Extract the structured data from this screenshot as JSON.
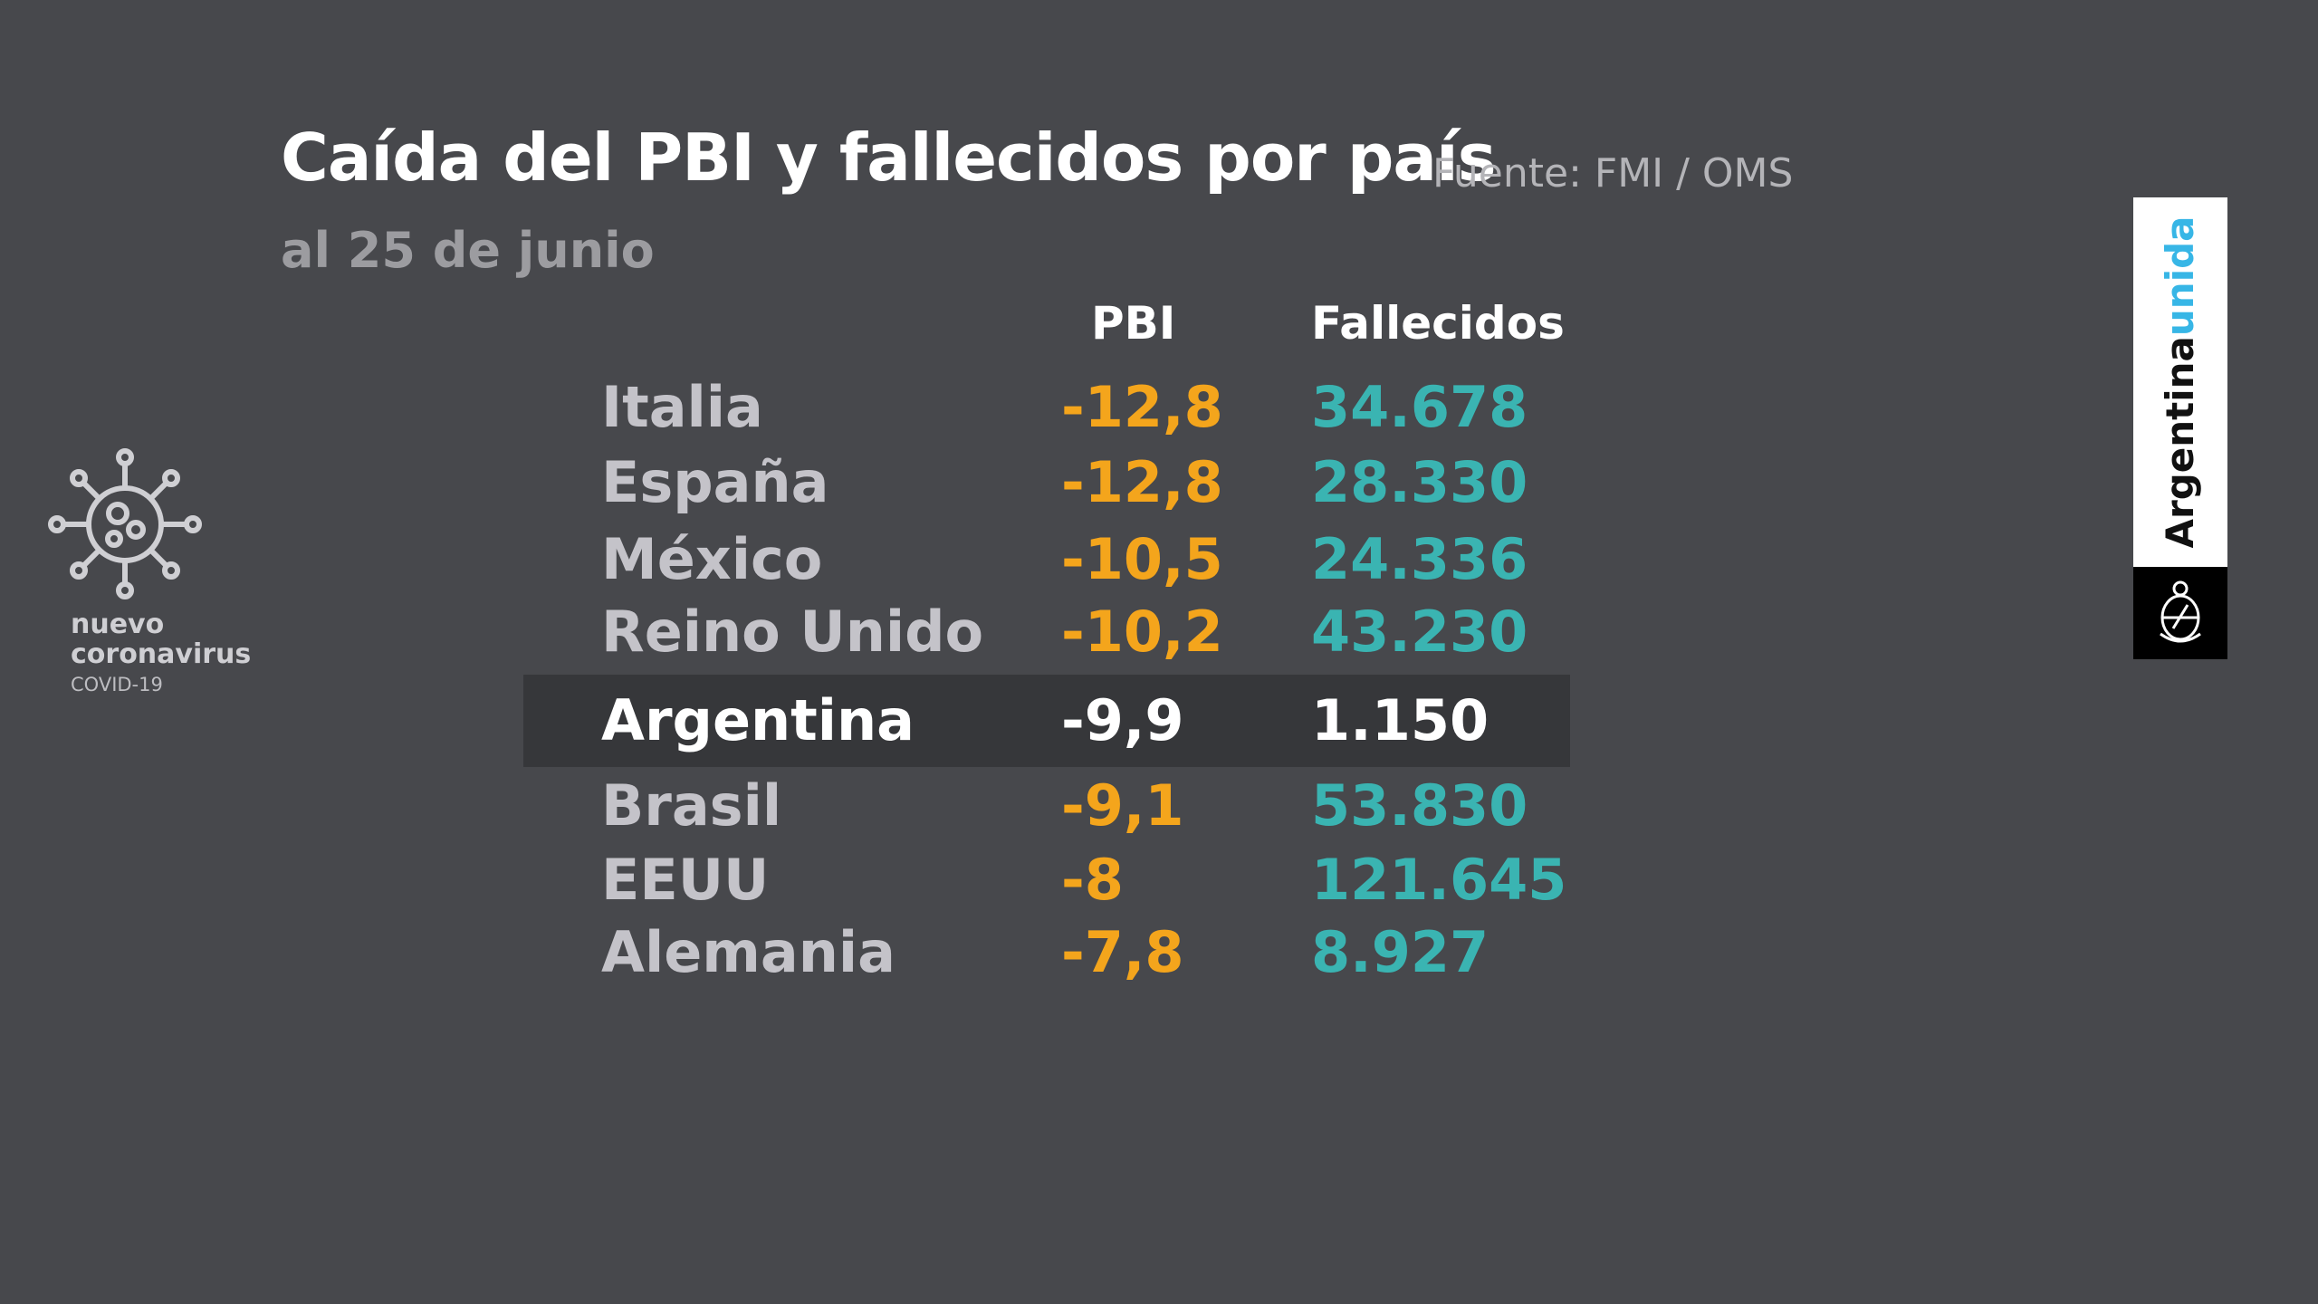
{
  "header": {
    "title": "Caída del PBI y fallecidos por país",
    "source": "Fuente: FMI / OMS",
    "subtitle": "al 25 de junio"
  },
  "chart_data": {
    "type": "table",
    "columns": [
      "PBI",
      "Fallecidos"
    ],
    "rows": [
      {
        "country": "Italia",
        "pbi": "-12,8",
        "fallecidos": "34.678",
        "highlight": false
      },
      {
        "country": "España",
        "pbi": "-12,8",
        "fallecidos": "28.330",
        "highlight": false
      },
      {
        "country": "México",
        "pbi": "-10,5",
        "fallecidos": "24.336",
        "highlight": false
      },
      {
        "country": "Reino Unido",
        "pbi": "-10,2",
        "fallecidos": "43.230",
        "highlight": false
      },
      {
        "country": "Argentina",
        "pbi": "-9,9",
        "fallecidos": "1.150",
        "highlight": true
      },
      {
        "country": "Brasil",
        "pbi": "-9,1",
        "fallecidos": "53.830",
        "highlight": false
      },
      {
        "country": "EEUU",
        "pbi": "-8",
        "fallecidos": "121.645",
        "highlight": false
      },
      {
        "country": "Alemania",
        "pbi": "-7,8",
        "fallecidos": "8.927",
        "highlight": false
      }
    ],
    "colors": {
      "pbi": "#f4a51c",
      "fallecidos": "#3ab4b2",
      "country": "#c4c3c9",
      "highlight_text": "#ffffff",
      "highlight_band": "#36373a"
    }
  },
  "logo": {
    "line1": "nuevo",
    "line2": "coronavirus",
    "line3": "COVID-19",
    "icon": "virus-icon"
  },
  "badge": {
    "word1": "Argentina",
    "word2": "unida",
    "icon": "coat-of-arms-icon"
  }
}
